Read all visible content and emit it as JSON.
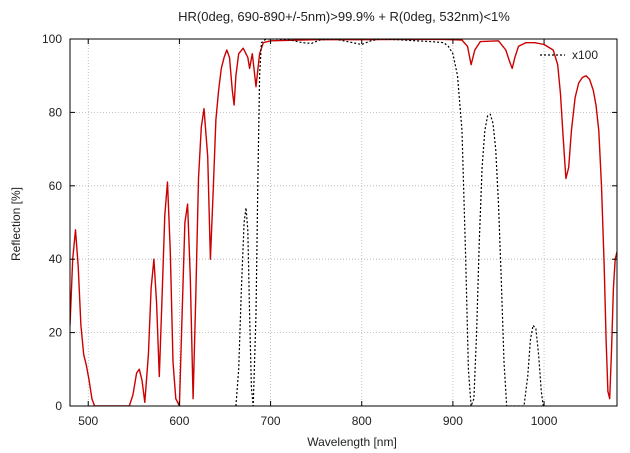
{
  "chart_data": {
    "type": "line",
    "title": "HR(0deg, 690-890+/-5nm)>99.9% + R(0deg, 532nm)<1%",
    "xlabel": "Wavelength [nm]",
    "ylabel": "Reflection [%]",
    "xlim": [
      480,
      1080
    ],
    "ylim": [
      0,
      100
    ],
    "xticks": [
      500,
      600,
      700,
      800,
      900,
      1000
    ],
    "yticks": [
      0,
      20,
      40,
      60,
      80,
      100
    ],
    "grid": true,
    "legend_placement": "top-right",
    "colors": {
      "reflection": "#cc0000",
      "x100": "#000000",
      "grid": "#b0b0b0"
    },
    "series": [
      {
        "name": "",
        "style": "solid",
        "points": [
          [
            480,
            22
          ],
          [
            483,
            40
          ],
          [
            486,
            48
          ],
          [
            489,
            38
          ],
          [
            492,
            22
          ],
          [
            495,
            14
          ],
          [
            498,
            11
          ],
          [
            501,
            7
          ],
          [
            504,
            2
          ],
          [
            507,
            0
          ],
          [
            545,
            0
          ],
          [
            549,
            3
          ],
          [
            553,
            9
          ],
          [
            556,
            10
          ],
          [
            559,
            7
          ],
          [
            562,
            1
          ],
          [
            566,
            14
          ],
          [
            569,
            32
          ],
          [
            572,
            40
          ],
          [
            575,
            28
          ],
          [
            578,
            8
          ],
          [
            581,
            30
          ],
          [
            584,
            52
          ],
          [
            587,
            61
          ],
          [
            590,
            42
          ],
          [
            593,
            12
          ],
          [
            596,
            2
          ],
          [
            600,
            0
          ],
          [
            603,
            25
          ],
          [
            606,
            50
          ],
          [
            609,
            55
          ],
          [
            612,
            35
          ],
          [
            615,
            2
          ],
          [
            618,
            30
          ],
          [
            621,
            62
          ],
          [
            624,
            76
          ],
          [
            627,
            81
          ],
          [
            631,
            68
          ],
          [
            634,
            40
          ],
          [
            637,
            58
          ],
          [
            640,
            78
          ],
          [
            643,
            86
          ],
          [
            646,
            92
          ],
          [
            649,
            95
          ],
          [
            652,
            97
          ],
          [
            655,
            95
          ],
          [
            658,
            86
          ],
          [
            660,
            82
          ],
          [
            662,
            90
          ],
          [
            665,
            96
          ],
          [
            670,
            97.5
          ],
          [
            675,
            95
          ],
          [
            677,
            92
          ],
          [
            680,
            96
          ],
          [
            684,
            87
          ],
          [
            688,
            96
          ],
          [
            692,
            99
          ],
          [
            700,
            99.5
          ],
          [
            750,
            99.8
          ],
          [
            800,
            99.8
          ],
          [
            850,
            99.9
          ],
          [
            890,
            99.9
          ],
          [
            910,
            99.7
          ],
          [
            916,
            98
          ],
          [
            920,
            93
          ],
          [
            924,
            97
          ],
          [
            930,
            99.3
          ],
          [
            950,
            99.5
          ],
          [
            958,
            97
          ],
          [
            962,
            94
          ],
          [
            965,
            92
          ],
          [
            968,
            95
          ],
          [
            972,
            98
          ],
          [
            980,
            99
          ],
          [
            990,
            99
          ],
          [
            1000,
            98.5
          ],
          [
            1010,
            97
          ],
          [
            1015,
            93
          ],
          [
            1018,
            85
          ],
          [
            1021,
            73
          ],
          [
            1024,
            62
          ],
          [
            1027,
            65
          ],
          [
            1030,
            75
          ],
          [
            1034,
            84
          ],
          [
            1038,
            88
          ],
          [
            1042,
            89.5
          ],
          [
            1046,
            90
          ],
          [
            1050,
            89
          ],
          [
            1054,
            86
          ],
          [
            1057,
            82
          ],
          [
            1060,
            75
          ],
          [
            1063,
            60
          ],
          [
            1066,
            38
          ],
          [
            1068,
            18
          ],
          [
            1070,
            4
          ],
          [
            1072,
            2
          ],
          [
            1074,
            15
          ],
          [
            1076,
            32
          ],
          [
            1078,
            40
          ],
          [
            1080,
            42
          ]
        ]
      },
      {
        "name": "x100",
        "style": "dotted",
        "points": [
          [
            662,
            0
          ],
          [
            665,
            10
          ],
          [
            668,
            32
          ],
          [
            671,
            50
          ],
          [
            673,
            54
          ],
          [
            675,
            48
          ],
          [
            677,
            25
          ],
          [
            679,
            5
          ],
          [
            681,
            0
          ],
          [
            684,
            25
          ],
          [
            686,
            60
          ],
          [
            688,
            90
          ],
          [
            690,
            99
          ],
          [
            695,
            100
          ],
          [
            705,
            100
          ],
          [
            720,
            99.8
          ],
          [
            735,
            99
          ],
          [
            745,
            98.8
          ],
          [
            755,
            99.8
          ],
          [
            770,
            100
          ],
          [
            780,
            99.5
          ],
          [
            790,
            99
          ],
          [
            800,
            98.5
          ],
          [
            810,
            99.5
          ],
          [
            820,
            100
          ],
          [
            840,
            99.8
          ],
          [
            860,
            99.5
          ],
          [
            880,
            99.2
          ],
          [
            890,
            99
          ],
          [
            895,
            98
          ],
          [
            900,
            96
          ],
          [
            905,
            90
          ],
          [
            910,
            75
          ],
          [
            914,
            40
          ],
          [
            917,
            10
          ],
          [
            920,
            0
          ],
          [
            923,
            2
          ],
          [
            926,
            20
          ],
          [
            929,
            45
          ],
          [
            932,
            65
          ],
          [
            935,
            75
          ],
          [
            938,
            79
          ],
          [
            941,
            79.5
          ],
          [
            944,
            77
          ],
          [
            947,
            70
          ],
          [
            950,
            55
          ],
          [
            953,
            35
          ],
          [
            956,
            12
          ],
          [
            959,
            0
          ],
          [
            978,
            0
          ],
          [
            982,
            8
          ],
          [
            985,
            18
          ],
          [
            988,
            22
          ],
          [
            991,
            21
          ],
          [
            994,
            14
          ],
          [
            997,
            4
          ],
          [
            999,
            0
          ]
        ]
      }
    ]
  }
}
